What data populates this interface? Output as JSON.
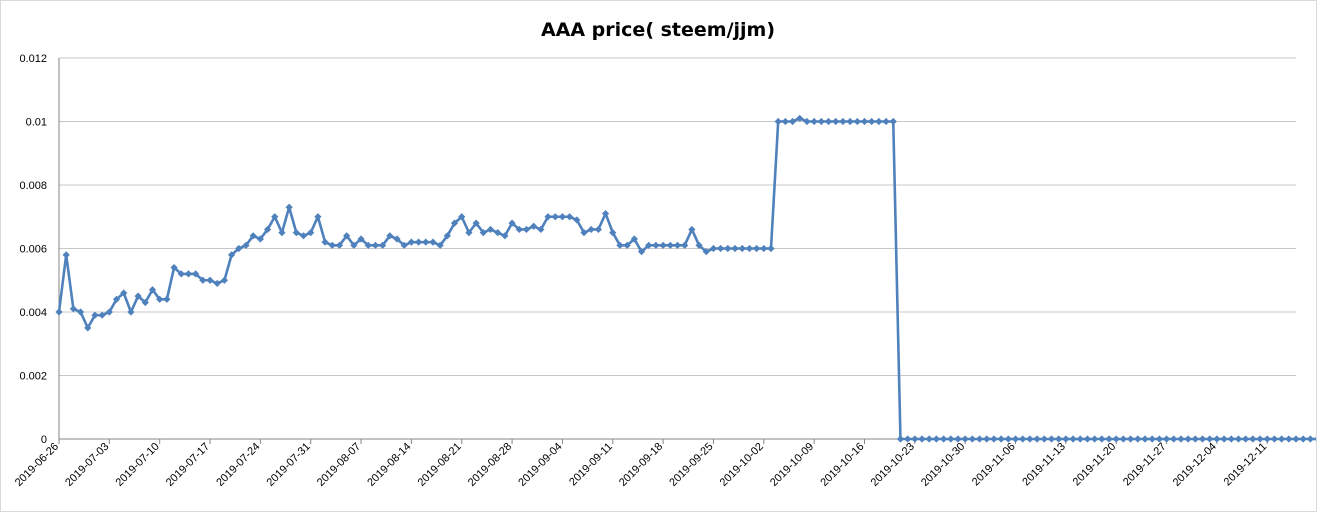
{
  "chart_data": {
    "type": "line",
    "title": "AAA price( steem/jjm)",
    "xlabel": "",
    "ylabel": "",
    "ylim": [
      0,
      0.012
    ],
    "yticks": [
      "0",
      "0.002",
      "0.004",
      "0.006",
      "0.008",
      "0.01",
      "0.012"
    ],
    "grid": true,
    "legend": "none",
    "line_color": "#4f81bd",
    "marker": "diamond",
    "x_start": "2019-06-26",
    "x_end": "2019-12-15",
    "x_tick_labels": [
      "2019-06-26",
      "2019-07-03",
      "2019-07-10",
      "2019-07-17",
      "2019-07-24",
      "2019-07-31",
      "2019-08-07",
      "2019-08-14",
      "2019-08-21",
      "2019-08-28",
      "2019-09-04",
      "2019-09-11",
      "2019-09-18",
      "2019-09-25",
      "2019-10-02",
      "2019-10-09",
      "2019-10-16",
      "2019-10-23",
      "2019-10-30",
      "2019-11-06",
      "2019-11-13",
      "2019-11-20",
      "2019-11-27",
      "2019-12-04",
      "2019-12-11"
    ],
    "series": [
      {
        "values": [
          0.004,
          0.0058,
          0.0041,
          0.004,
          0.0035,
          0.0039,
          0.0039,
          0.004,
          0.0044,
          0.0046,
          0.004,
          0.0045,
          0.0043,
          0.0047,
          0.0044,
          0.0044,
          0.0054,
          0.0052,
          0.0052,
          0.0052,
          0.005,
          0.005,
          0.0049,
          0.005,
          0.0058,
          0.006,
          0.0061,
          0.0064,
          0.0063,
          0.0066,
          0.007,
          0.0065,
          0.0073,
          0.0065,
          0.0064,
          0.0065,
          0.007,
          0.0062,
          0.0061,
          0.0061,
          0.0064,
          0.0061,
          0.0063,
          0.0061,
          0.0061,
          0.0061,
          0.0064,
          0.0063,
          0.0061,
          0.0062,
          0.0062,
          0.0062,
          0.0062,
          0.0061,
          0.0064,
          0.0068,
          0.007,
          0.0065,
          0.0068,
          0.0065,
          0.0066,
          0.0065,
          0.0064,
          0.0068,
          0.0066,
          0.0066,
          0.0067,
          0.0066,
          0.007,
          0.007,
          0.007,
          0.007,
          0.0069,
          0.0065,
          0.0066,
          0.0066,
          0.0071,
          0.0065,
          0.0061,
          0.0061,
          0.0063,
          0.0059,
          0.0061,
          0.0061,
          0.0061,
          0.0061,
          0.0061,
          0.0061,
          0.0066,
          0.0061,
          0.0059,
          0.006,
          0.006,
          0.006,
          0.006,
          0.006,
          0.006,
          0.006,
          0.006,
          0.006,
          0.01,
          0.01,
          0.01,
          0.0101,
          0.01,
          0.01,
          0.01,
          0.01,
          0.01,
          0.01,
          0.01,
          0.01,
          0.01,
          0.01,
          0.01,
          0.01,
          0.01,
          0,
          0,
          0,
          0,
          0,
          0,
          0,
          0,
          0,
          0,
          0,
          0,
          0,
          0,
          0,
          0,
          0,
          0,
          0,
          0,
          0,
          0,
          0,
          0,
          0,
          0,
          0,
          0,
          0,
          0,
          0,
          0,
          0,
          0,
          0,
          0,
          0,
          0,
          0,
          0,
          0,
          0,
          0,
          0,
          0,
          0,
          0,
          0,
          0,
          0,
          0,
          0,
          0,
          0,
          0,
          0,
          0,
          0,
          0,
          0,
          0,
          0,
          0,
          0
        ]
      }
    ]
  }
}
